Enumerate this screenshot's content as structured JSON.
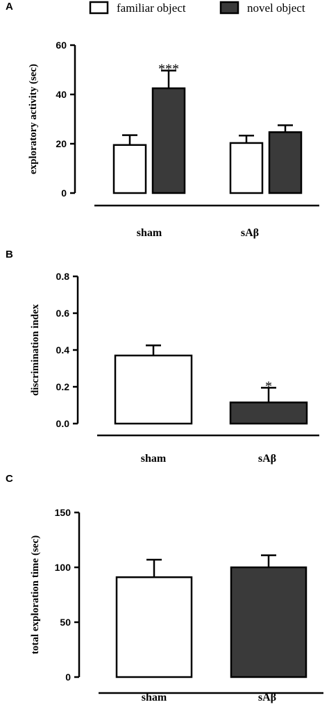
{
  "legend": {
    "familiar": "familiar object",
    "novel": "novel object"
  },
  "colors": {
    "familiar": "#ffffff",
    "novel": "#3a3a3a",
    "stroke": "#000000"
  },
  "chart_data": [
    {
      "panel": "A",
      "type": "bar",
      "ylabel": "exploratory activity (sec)",
      "categories": [
        "sham",
        "sAβ"
      ],
      "series": [
        {
          "name": "familiar object",
          "values": [
            19.5,
            20.3
          ],
          "errors": [
            4,
            3
          ]
        },
        {
          "name": "novel object",
          "values": [
            42.5,
            24.7
          ],
          "errors": [
            7.2,
            2.8
          ]
        }
      ],
      "significance": [
        "***",
        ""
      ],
      "ylim": [
        0,
        60
      ],
      "yticks": [
        "0",
        "20",
        "40",
        "60"
      ]
    },
    {
      "panel": "B",
      "type": "bar",
      "ylabel": "discrimination index",
      "categories": [
        "sham",
        "sAβ"
      ],
      "values": [
        0.37,
        0.115
      ],
      "errors": [
        0.055,
        0.08
      ],
      "significance": [
        "",
        "*"
      ],
      "ylim": [
        0,
        0.8
      ],
      "yticks": [
        "0.0",
        "0.2",
        "0.4",
        "0.6",
        "0.8"
      ]
    },
    {
      "panel": "C",
      "type": "bar",
      "ylabel": "total exploration time (sec)",
      "categories": [
        "sham",
        "sAβ"
      ],
      "values": [
        91,
        100
      ],
      "errors": [
        16,
        11
      ],
      "significance": [
        "",
        ""
      ],
      "ylim": [
        0,
        150
      ],
      "yticks": [
        "0",
        "50",
        "100",
        "150"
      ]
    }
  ]
}
